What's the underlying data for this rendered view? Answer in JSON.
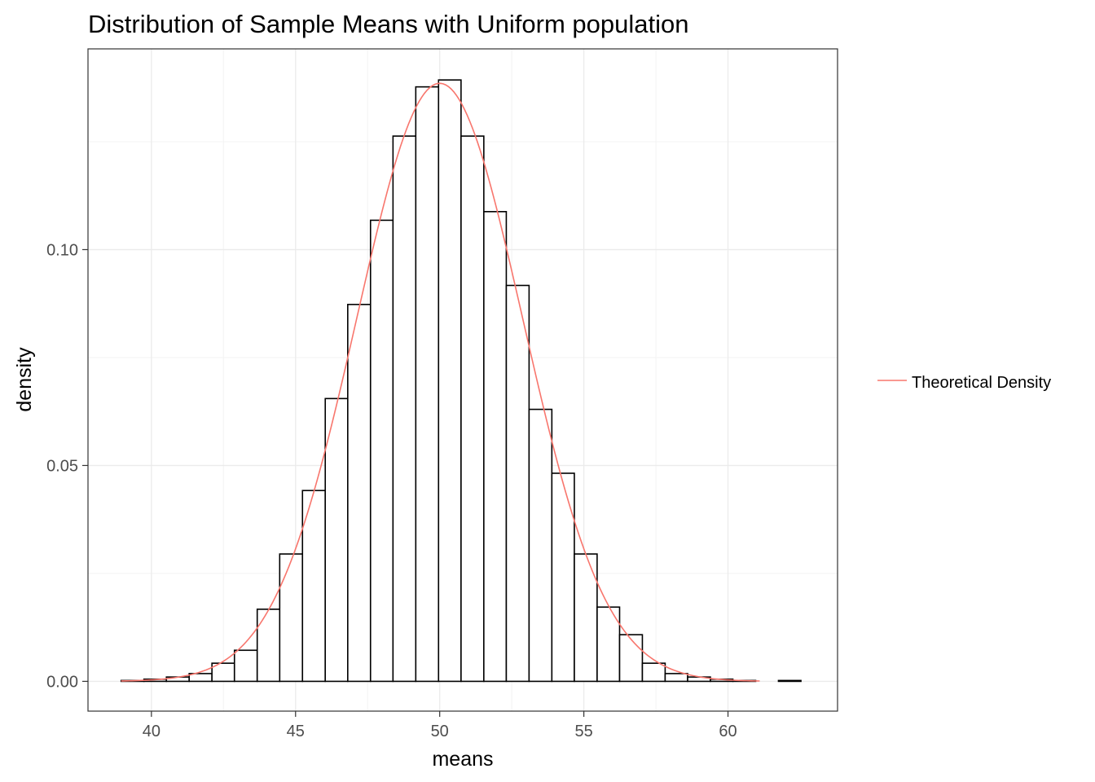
{
  "chart_data": {
    "type": "bar",
    "title": "Distribution of Sample Means with Uniform population",
    "xlabel": "means",
    "ylabel": "density",
    "xlim": [
      37.8,
      63.8
    ],
    "ylim": [
      -0.0069,
      0.1465
    ],
    "x_ticks": [
      40,
      45,
      50,
      55,
      60
    ],
    "x_tick_labels": [
      "40",
      "45",
      "50",
      "55",
      "60"
    ],
    "y_ticks": [
      0.0,
      0.05,
      0.1
    ],
    "y_tick_labels": [
      "0.00",
      "0.05",
      "0.10"
    ],
    "grid": true,
    "legend_position": "right",
    "histogram": {
      "bin_width": 0.7864,
      "bins": [
        {
          "x0": 38.95,
          "x1": 39.74,
          "density": 0.0002
        },
        {
          "x0": 39.74,
          "x1": 40.52,
          "density": 0.0005
        },
        {
          "x0": 40.52,
          "x1": 41.31,
          "density": 0.001
        },
        {
          "x0": 41.31,
          "x1": 42.1,
          "density": 0.0018
        },
        {
          "x0": 42.1,
          "x1": 42.88,
          "density": 0.0042
        },
        {
          "x0": 42.88,
          "x1": 43.67,
          "density": 0.0072
        },
        {
          "x0": 43.67,
          "x1": 44.45,
          "density": 0.0167
        },
        {
          "x0": 44.45,
          "x1": 45.24,
          "density": 0.0295
        },
        {
          "x0": 45.24,
          "x1": 46.03,
          "density": 0.0442
        },
        {
          "x0": 46.03,
          "x1": 46.81,
          "density": 0.0655
        },
        {
          "x0": 46.81,
          "x1": 47.6,
          "density": 0.0873
        },
        {
          "x0": 47.6,
          "x1": 48.38,
          "density": 0.1068
        },
        {
          "x0": 48.38,
          "x1": 49.17,
          "density": 0.1263
        },
        {
          "x0": 49.17,
          "x1": 49.96,
          "density": 0.1377
        },
        {
          "x0": 49.96,
          "x1": 50.74,
          "density": 0.1393
        },
        {
          "x0": 50.74,
          "x1": 51.53,
          "density": 0.1263
        },
        {
          "x0": 51.53,
          "x1": 52.31,
          "density": 0.1088
        },
        {
          "x0": 52.31,
          "x1": 53.1,
          "density": 0.0917
        },
        {
          "x0": 53.1,
          "x1": 53.89,
          "density": 0.063
        },
        {
          "x0": 53.89,
          "x1": 54.67,
          "density": 0.0482
        },
        {
          "x0": 54.67,
          "x1": 55.46,
          "density": 0.0295
        },
        {
          "x0": 55.46,
          "x1": 56.24,
          "density": 0.0172
        },
        {
          "x0": 56.24,
          "x1": 57.03,
          "density": 0.0108
        },
        {
          "x0": 57.03,
          "x1": 57.82,
          "density": 0.0042
        },
        {
          "x0": 57.82,
          "x1": 58.6,
          "density": 0.0018
        },
        {
          "x0": 58.6,
          "x1": 59.39,
          "density": 0.001
        },
        {
          "x0": 59.39,
          "x1": 60.17,
          "density": 0.0005
        },
        {
          "x0": 60.17,
          "x1": 60.96,
          "density": 0.0002
        },
        {
          "x0": 60.96,
          "x1": 61.75,
          "density": 0.0
        },
        {
          "x0": 61.75,
          "x1": 62.53,
          "density": 0.0002
        }
      ],
      "fill": "#ffffff",
      "stroke": "#000000"
    },
    "series": [
      {
        "name": "Theoretical Density",
        "type": "line",
        "color": "#f8766d",
        "distribution": "normal",
        "mean": 50.0,
        "sd": 2.88,
        "x_range": [
          38.95,
          61.1
        ]
      }
    ],
    "panel_border": "#333333",
    "grid_major_color": "#ebebeb",
    "grid_minor_color": "#f3f3f3"
  }
}
